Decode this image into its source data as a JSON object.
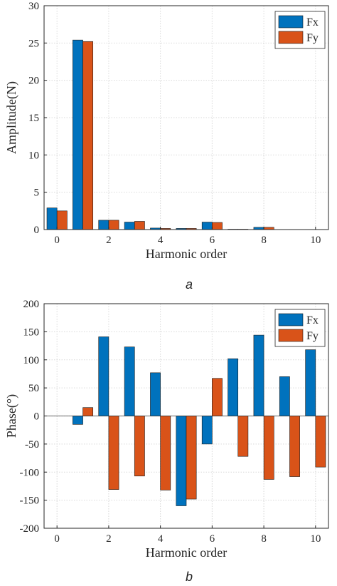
{
  "colors": {
    "fx": "#0072BD",
    "fy": "#D95319"
  },
  "chart_data": [
    {
      "type": "bar",
      "caption": "a",
      "x": [
        0,
        1,
        2,
        3,
        4,
        5,
        6,
        7,
        8,
        9,
        10
      ],
      "xticks": [
        0,
        2,
        4,
        6,
        8,
        10
      ],
      "xlim": [
        -0.5,
        10.5
      ],
      "ylim": [
        0,
        30
      ],
      "yticks": [
        0,
        5,
        10,
        15,
        20,
        25,
        30
      ],
      "xlabel": "Harmonic order",
      "ylabel": "Amplitude(N)",
      "grid": true,
      "legend": "top-right",
      "series": [
        {
          "name": "Fx",
          "values": [
            2.9,
            25.4,
            1.25,
            1.0,
            0.2,
            0.15,
            1.0,
            0.05,
            0.3,
            0.02,
            0.02
          ]
        },
        {
          "name": "Fy",
          "values": [
            2.5,
            25.2,
            1.25,
            1.1,
            0.15,
            0.15,
            0.95,
            0.05,
            0.3,
            0.02,
            0.02
          ]
        }
      ]
    },
    {
      "type": "bar",
      "caption": "b",
      "x": [
        0,
        1,
        2,
        3,
        4,
        5,
        6,
        7,
        8,
        9,
        10
      ],
      "xticks": [
        0,
        2,
        4,
        6,
        8,
        10
      ],
      "xlim": [
        -0.5,
        10.5
      ],
      "ylim": [
        -200,
        200
      ],
      "yticks": [
        -200,
        -150,
        -100,
        -50,
        0,
        50,
        100,
        150,
        200
      ],
      "xlabel": "Harmonic order",
      "ylabel": "Phase(°)",
      "grid": true,
      "legend": "top-right",
      "series": [
        {
          "name": "Fx",
          "values": [
            0,
            -15,
            141,
            123,
            77,
            -160,
            -50,
            102,
            144,
            70,
            118
          ]
        },
        {
          "name": "Fy",
          "values": [
            0,
            15,
            -131,
            -107,
            -132,
            -148,
            67,
            -72,
            -113,
            -108,
            -91
          ]
        }
      ]
    }
  ]
}
